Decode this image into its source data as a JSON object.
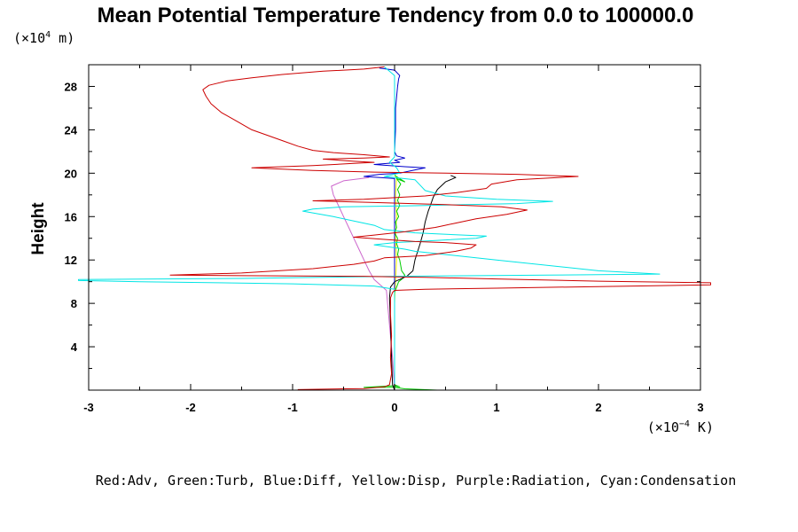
{
  "chart_data": {
    "type": "line",
    "title": "Mean Potential Temperature Tendency from 0.0 to 100000.0",
    "ylabel": "Height",
    "xlabel": "",
    "y_unit": {
      "prefix": "(×10",
      "exp": "4",
      "suffix": " m)"
    },
    "x_unit": {
      "prefix": "(×10",
      "exp": "−4",
      "suffix": " K)"
    },
    "xlim": [
      -3,
      3
    ],
    "ylim": [
      0,
      30
    ],
    "x_ticks": [
      "-3",
      "-2",
      "-1",
      "0",
      "1",
      "2",
      "3"
    ],
    "y_ticks": [
      "4",
      "8",
      "12",
      "16",
      "20",
      "24",
      "28"
    ],
    "x_tick_values": [
      -3,
      -2,
      -1,
      0,
      1,
      2,
      3
    ],
    "y_tick_values": [
      4,
      8,
      12,
      16,
      20,
      24,
      28
    ],
    "legend_text": "Red:Adv, Green:Turb, Blue:Diff, Yellow:Disp, Purple:Radiation, Cyan:Condensation",
    "series": [
      {
        "key": "radiation",
        "color": "#cc66cc",
        "points": [
          [
            0.0,
            0
          ],
          [
            -0.02,
            3
          ],
          [
            -0.05,
            6
          ],
          [
            -0.08,
            9.2
          ],
          [
            -0.2,
            10.2
          ],
          [
            -0.25,
            11
          ],
          [
            -0.3,
            12
          ],
          [
            -0.35,
            13
          ],
          [
            -0.4,
            14
          ],
          [
            -0.45,
            15
          ],
          [
            -0.5,
            16
          ],
          [
            -0.55,
            17
          ],
          [
            -0.6,
            18
          ],
          [
            -0.62,
            18.8
          ],
          [
            -0.5,
            19.3
          ],
          [
            -0.25,
            19.6
          ]
        ]
      },
      {
        "key": "disp",
        "color": "#ffff00",
        "points": [
          [
            0.0,
            0
          ],
          [
            0.0,
            8
          ],
          [
            0.01,
            10
          ],
          [
            0.02,
            12
          ],
          [
            0.01,
            14
          ],
          [
            0.02,
            16
          ],
          [
            0.01,
            18
          ],
          [
            0.02,
            19.5
          ],
          [
            0.0,
            20
          ]
        ]
      },
      {
        "key": "turb",
        "color": "#00cc00",
        "points": [
          [
            0.42,
            0.0
          ],
          [
            0.1,
            0.12
          ],
          [
            0.0,
            0.25
          ],
          [
            -0.3,
            0.25
          ],
          [
            -0.02,
            0.4
          ],
          [
            0.05,
            0.3
          ],
          [
            0.0,
            0.5
          ],
          [
            0.0,
            1
          ],
          [
            0.0,
            5
          ],
          [
            0.0,
            9
          ],
          [
            0.04,
            10
          ],
          [
            0.08,
            10.3
          ],
          [
            0.1,
            10.6
          ],
          [
            0.07,
            11
          ],
          [
            0.05,
            12
          ],
          [
            0.03,
            12.5
          ],
          [
            0.04,
            13
          ],
          [
            0.02,
            13.5
          ],
          [
            0.03,
            14
          ],
          [
            0.0,
            14.5
          ],
          [
            0.02,
            15
          ],
          [
            0.01,
            15.5
          ],
          [
            0.04,
            16
          ],
          [
            0.02,
            16.5
          ],
          [
            0.05,
            17
          ],
          [
            0.03,
            17.5
          ],
          [
            0.05,
            18
          ],
          [
            0.03,
            18.5
          ],
          [
            0.06,
            19
          ],
          [
            0.02,
            19.5
          ],
          [
            0.1,
            19.2
          ],
          [
            0.0,
            19.8
          ]
        ]
      },
      {
        "key": "convergence",
        "color": "#000000",
        "points": [
          [
            0.0,
            0
          ],
          [
            -0.02,
            0.5
          ],
          [
            -0.03,
            3
          ],
          [
            -0.04,
            6
          ],
          [
            -0.05,
            8.5
          ],
          [
            -0.04,
            9.5
          ],
          [
            0.0,
            10
          ],
          [
            0.05,
            10.2
          ],
          [
            0.12,
            10.5
          ],
          [
            0.18,
            11
          ],
          [
            0.2,
            12
          ],
          [
            0.22,
            12.6
          ],
          [
            0.25,
            13.5
          ],
          [
            0.28,
            14.5
          ],
          [
            0.3,
            15.5
          ],
          [
            0.33,
            16.5
          ],
          [
            0.35,
            17
          ],
          [
            0.38,
            17.8
          ],
          [
            0.42,
            18.5
          ],
          [
            0.5,
            19.2
          ],
          [
            0.6,
            19.6
          ],
          [
            0.55,
            19.8
          ]
        ]
      },
      {
        "key": "diff",
        "color": "#0000cc",
        "points": [
          [
            0.0,
            0
          ],
          [
            0.0,
            9
          ],
          [
            0.0,
            19.5
          ],
          [
            -0.3,
            19.7
          ],
          [
            -0.15,
            19.9
          ],
          [
            0.05,
            20.0
          ],
          [
            0.3,
            20.5
          ],
          [
            0.1,
            20.6
          ],
          [
            -0.2,
            20.8
          ],
          [
            0.05,
            21.0
          ],
          [
            0.0,
            21.2
          ],
          [
            0.1,
            21.4
          ],
          [
            0.02,
            21.6
          ],
          [
            0.0,
            22
          ],
          [
            0.01,
            24
          ],
          [
            0.01,
            26
          ],
          [
            0.03,
            28
          ],
          [
            0.04,
            28.7
          ],
          [
            0.05,
            29
          ],
          [
            0.0,
            29.5
          ],
          [
            -0.15,
            29.7
          ]
        ]
      },
      {
        "key": "condensation",
        "color": "#00e5e5",
        "points": [
          [
            0.0,
            0
          ],
          [
            0.0,
            2
          ],
          [
            0.0,
            5
          ],
          [
            0.0,
            8
          ],
          [
            0.0,
            9.3
          ],
          [
            -0.2,
            9.6
          ],
          [
            -1.0,
            9.8
          ],
          [
            -2.5,
            10.0
          ],
          [
            -3.1,
            10.1
          ],
          [
            -3.1,
            10.2
          ],
          [
            -1.5,
            10.3
          ],
          [
            0.0,
            10.5
          ],
          [
            1.5,
            10.6
          ],
          [
            2.6,
            10.7
          ],
          [
            2.0,
            11.0
          ],
          [
            1.0,
            12.0
          ],
          [
            0.5,
            12.5
          ],
          [
            0.2,
            12.8
          ],
          [
            0.1,
            13.0
          ],
          [
            -0.2,
            13.4
          ],
          [
            0.0,
            13.6
          ],
          [
            0.4,
            13.8
          ],
          [
            0.8,
            14.0
          ],
          [
            0.9,
            14.2
          ],
          [
            0.2,
            14.5
          ],
          [
            -0.1,
            14.8
          ],
          [
            -0.2,
            15.2
          ],
          [
            -0.4,
            15.6
          ],
          [
            -0.6,
            16.0
          ],
          [
            -0.9,
            16.5
          ],
          [
            -0.8,
            16.7
          ],
          [
            -0.5,
            16.9
          ],
          [
            0.2,
            17.0
          ],
          [
            1.2,
            17.2
          ],
          [
            1.55,
            17.4
          ],
          [
            1.0,
            17.6
          ],
          [
            0.5,
            17.9
          ],
          [
            0.3,
            18.4
          ],
          [
            0.25,
            18.9
          ],
          [
            0.2,
            19.4
          ],
          [
            -0.1,
            19.7
          ],
          [
            0.05,
            20.0
          ],
          [
            0.02,
            20.5
          ],
          [
            -0.05,
            21.0
          ],
          [
            0.0,
            21.5
          ],
          [
            0.0,
            24
          ],
          [
            0.0,
            27
          ],
          [
            0.0,
            29
          ],
          [
            -0.1,
            29.8
          ]
        ]
      },
      {
        "key": "adv",
        "color": "#cc0000",
        "points": [
          [
            -0.95,
            0.05
          ],
          [
            -0.3,
            0.15
          ],
          [
            -0.1,
            0.3
          ],
          [
            -0.05,
            0.5
          ],
          [
            -0.03,
            1.5
          ],
          [
            -0.04,
            3
          ],
          [
            -0.03,
            5
          ],
          [
            -0.04,
            7
          ],
          [
            -0.04,
            8.5
          ],
          [
            -0.02,
            9.0
          ],
          [
            0.0,
            9.2
          ],
          [
            0.3,
            9.3
          ],
          [
            1.0,
            9.4
          ],
          [
            2.0,
            9.55
          ],
          [
            3.1,
            9.7
          ],
          [
            3.1,
            9.9
          ],
          [
            2.0,
            10.05
          ],
          [
            1.0,
            10.25
          ],
          [
            0.3,
            10.4
          ],
          [
            0.0,
            10.45
          ],
          [
            -0.3,
            10.5
          ],
          [
            -1.5,
            10.55
          ],
          [
            -2.2,
            10.6
          ],
          [
            -1.5,
            10.8
          ],
          [
            -0.8,
            11.2
          ],
          [
            -0.4,
            11.6
          ],
          [
            -0.2,
            11.9
          ],
          [
            -0.1,
            12.2
          ],
          [
            0.3,
            12.4
          ],
          [
            0.6,
            12.8
          ],
          [
            0.75,
            13.1
          ],
          [
            0.8,
            13.4
          ],
          [
            0.5,
            13.6
          ],
          [
            0.2,
            13.7
          ],
          [
            -0.1,
            13.9
          ],
          [
            -0.4,
            14.1
          ],
          [
            -0.2,
            14.3
          ],
          [
            0.1,
            14.6
          ],
          [
            0.4,
            15.0
          ],
          [
            0.6,
            15.4
          ],
          [
            0.8,
            15.8
          ],
          [
            1.1,
            16.2
          ],
          [
            1.3,
            16.6
          ],
          [
            1.05,
            16.9
          ],
          [
            0.5,
            17.1
          ],
          [
            -0.2,
            17.3
          ],
          [
            -0.8,
            17.45
          ],
          [
            -0.3,
            17.6
          ],
          [
            0.3,
            17.9
          ],
          [
            0.6,
            18.2
          ],
          [
            0.9,
            18.6
          ],
          [
            0.95,
            19.0
          ],
          [
            1.2,
            19.4
          ],
          [
            1.8,
            19.7
          ],
          [
            1.2,
            19.9
          ],
          [
            0.5,
            20.0
          ],
          [
            -0.2,
            20.1
          ],
          [
            -0.8,
            20.25
          ],
          [
            -1.4,
            20.5
          ],
          [
            -0.8,
            20.7
          ],
          [
            -0.4,
            20.9
          ],
          [
            -0.2,
            21.0
          ],
          [
            -0.4,
            21.1
          ],
          [
            -0.7,
            21.3
          ],
          [
            -0.3,
            21.4
          ],
          [
            -0.05,
            21.5
          ],
          [
            -0.3,
            21.7
          ],
          [
            -0.6,
            21.9
          ],
          [
            -0.8,
            22.1
          ],
          [
            -0.95,
            22.5
          ],
          [
            -1.1,
            23.0
          ],
          [
            -1.25,
            23.5
          ],
          [
            -1.4,
            24.0
          ],
          [
            -1.55,
            24.8
          ],
          [
            -1.7,
            25.6
          ],
          [
            -1.8,
            26.4
          ],
          [
            -1.85,
            27.1
          ],
          [
            -1.88,
            27.7
          ],
          [
            -1.82,
            28.1
          ],
          [
            -1.65,
            28.5
          ],
          [
            -1.4,
            28.8
          ],
          [
            -1.1,
            29.1
          ],
          [
            -0.7,
            29.4
          ],
          [
            -0.3,
            29.6
          ],
          [
            -0.1,
            29.8
          ]
        ]
      }
    ]
  }
}
